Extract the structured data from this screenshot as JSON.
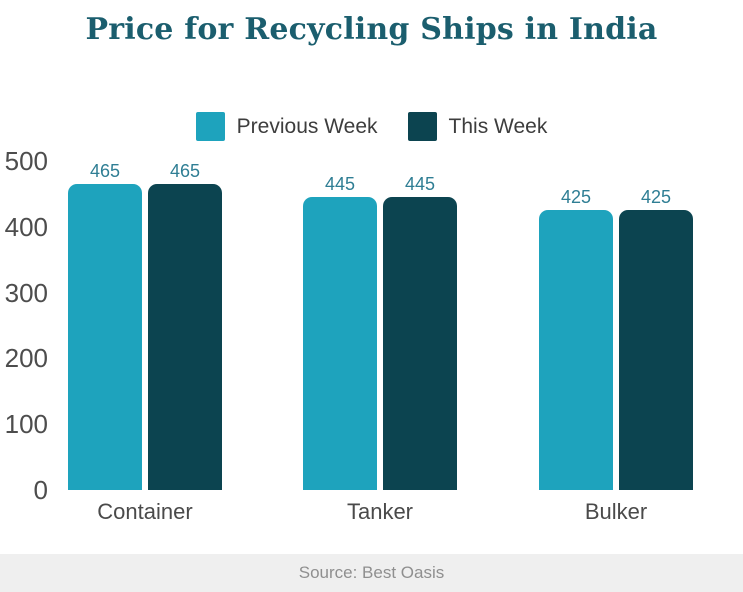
{
  "title": "Price for Recycling Ships in India",
  "legend": {
    "items": [
      {
        "label": "Previous Week",
        "color": "#1ea3bd"
      },
      {
        "label": "This Week",
        "color": "#0c4450"
      }
    ]
  },
  "footer": {
    "source": "Source: Best Oasis"
  },
  "colors": {
    "title": "#1b5e6e",
    "value_label": "#2f7e94",
    "axis_label": "#4d4d4d",
    "legend_text": "#3d3d3d",
    "source_text": "#8f8f8f",
    "footer_bg": "#efefef",
    "bar_previous_week": "#1ea3bd",
    "bar_this_week": "#0c4450",
    "background": "#ffffff"
  },
  "chart_data": {
    "type": "bar",
    "title": "Price for Recycling Ships in India",
    "categories": [
      "Container",
      "Tanker",
      "Bulker"
    ],
    "series": [
      {
        "name": "Previous Week",
        "color": "#1ea3bd",
        "values": [
          465,
          445,
          425
        ]
      },
      {
        "name": "This Week",
        "color": "#0c4450",
        "values": [
          465,
          445,
          425
        ]
      }
    ],
    "value_labels": [
      [
        465,
        465
      ],
      [
        445,
        445
      ],
      [
        425,
        425
      ]
    ],
    "yticks": [
      0,
      100,
      200,
      300,
      400,
      500
    ],
    "ylim": [
      0,
      500
    ],
    "xlabel": "",
    "ylabel": "",
    "grid": false,
    "legend_position": "top",
    "show_value_labels": true,
    "source": "Source: Best Oasis"
  }
}
